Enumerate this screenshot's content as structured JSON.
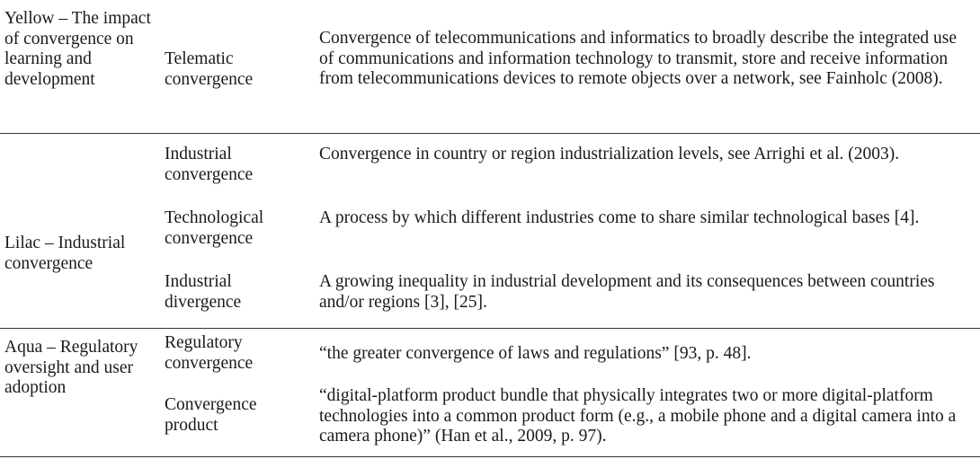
{
  "groups": [
    {
      "category": "Yellow – The impact of convergence on learning and development",
      "rows": [
        {
          "term": "Telematic convergence",
          "description": "Convergence of telecommunications and informatics to broadly describe the integrated use of communications and information technology to transmit, store and receive information from telecommunications devices to remote objects over a network, see Fainholc (2008)."
        }
      ]
    },
    {
      "category": "Lilac – Industrial convergence",
      "rows": [
        {
          "term": "Industrial convergence",
          "description": "Convergence in country or region industrialization levels, see Arrighi et al. (2003)."
        },
        {
          "term": "Technological convergence",
          "description": "A process by which different industries come to share similar technological bases [4]."
        },
        {
          "term": "Industrial divergence",
          "description": "A growing inequality in industrial development and its consequences between countries and/or regions [3], [25]."
        }
      ]
    },
    {
      "category": "Aqua – Regulatory oversight and user adoption",
      "rows": [
        {
          "term": "Regulatory convergence",
          "description": "“the greater convergence of laws and regulations” [93, p. 48]."
        },
        {
          "term": "Convergence product",
          "description": "“digital-platform product bundle that physically integrates two or more digital-platform technologies into a common product form (e.g., a mobile phone and a digital camera into a camera phone)” (Han et al., 2009, p. 97)."
        }
      ]
    }
  ]
}
